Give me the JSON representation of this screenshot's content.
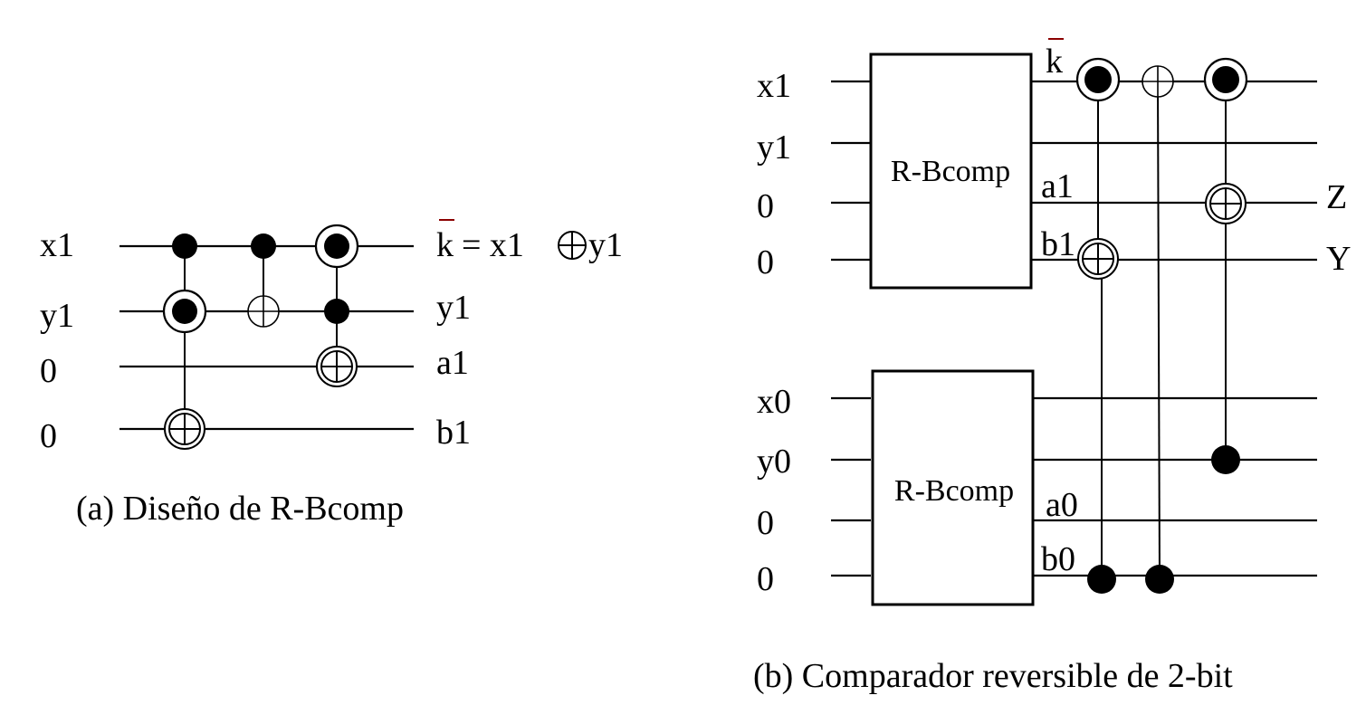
{
  "circuit_a": {
    "inputs": [
      "x1",
      "y1",
      "0",
      "0"
    ],
    "outputs": {
      "k": "k",
      "k_rest": "= x1",
      "k_y1": "y1",
      "y1": "y1",
      "a1": "a1",
      "b1": "b1"
    },
    "caption": "(a) Diseño de R-Bcomp"
  },
  "circuit_b": {
    "inputs_top": [
      "x1",
      "y1",
      "0",
      "0"
    ],
    "inputs_bottom": [
      "x0",
      "y0",
      "0",
      "0"
    ],
    "block_top": "R-Bcomp",
    "block_bottom": "R-Bcomp",
    "wire_labels": {
      "k": "k",
      "a1": "a1",
      "b1": "b1",
      "a0": "a0",
      "b0": "b0"
    },
    "outputs": {
      "z": "Z",
      "y": "Y"
    },
    "caption": "(b) Comparador reversible de 2-bit"
  }
}
